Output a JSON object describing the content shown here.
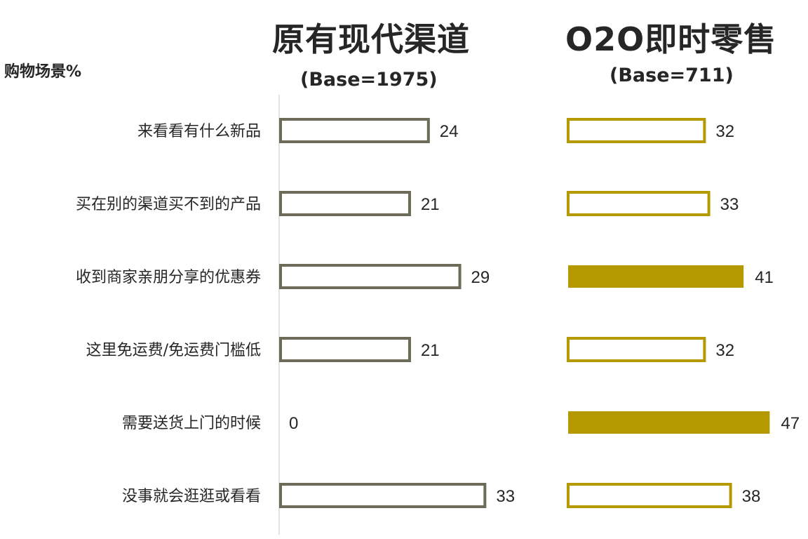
{
  "section_label": "购物场景%",
  "chart_data": [
    {
      "type": "bar",
      "orientation": "horizontal",
      "title": "原有现代渠道",
      "subtitle": "(Base=1975)",
      "categories": [
        "来看看有什么新品",
        "买在别的渠道买不到的产品",
        "收到商家亲朋分享的优惠券",
        "这里免运费/免运费门槛低",
        "需要送货上门的时候",
        "没事就会逛逛或看看"
      ],
      "values": [
        24,
        21,
        29,
        21,
        0,
        33
      ],
      "highlighted": [
        false,
        false,
        false,
        false,
        false,
        false
      ],
      "color": "#6b6b58"
    },
    {
      "type": "bar",
      "orientation": "horizontal",
      "title": "O2O即时零售",
      "subtitle": "(Base=711)",
      "categories": [
        "来看看有什么新品",
        "买在别的渠道买不到的产品",
        "收到商家亲朋分享的优惠券",
        "这里免运费/免运费门槛低",
        "需要送货上门的时候",
        "没事就会逛逛或看看"
      ],
      "values": [
        32,
        33,
        41,
        32,
        47,
        38
      ],
      "highlighted": [
        false,
        false,
        true,
        false,
        true,
        false
      ],
      "color": "#b49a00"
    }
  ]
}
